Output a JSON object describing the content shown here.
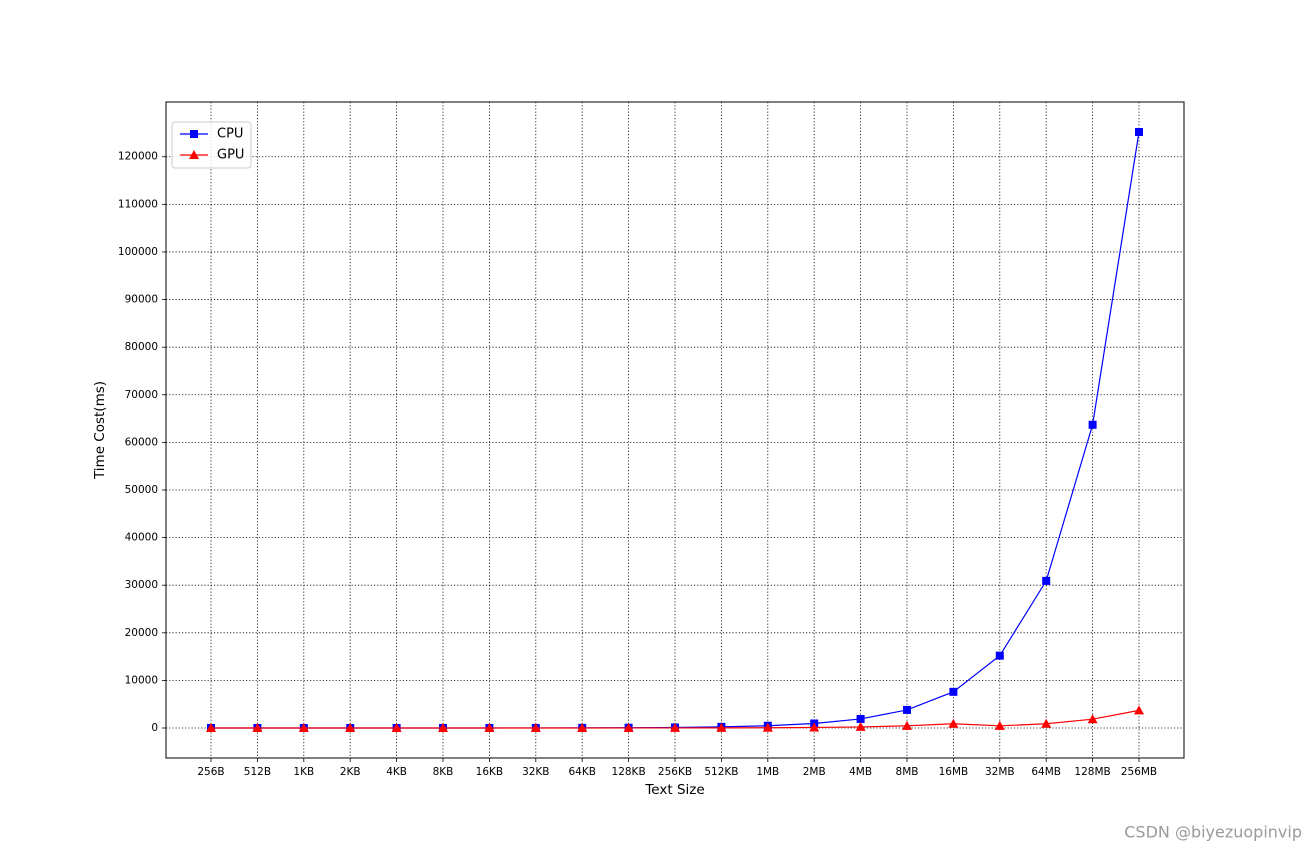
{
  "chart_data": {
    "type": "line",
    "xlabel": "Text Size",
    "ylabel": "Time Cost(ms)",
    "categories": [
      "256B",
      "512B",
      "1KB",
      "2KB",
      "4KB",
      "8KB",
      "16KB",
      "32KB",
      "64KB",
      "128KB",
      "256KB",
      "512KB",
      "1MB",
      "2MB",
      "4MB",
      "8MB",
      "16MB",
      "32MB",
      "64MB",
      "128MB",
      "256MB"
    ],
    "series": [
      {
        "name": "CPU",
        "color": "#0000ff",
        "marker": "square",
        "values": [
          1,
          1,
          1,
          2,
          3,
          5,
          8,
          15,
          30,
          60,
          120,
          240,
          480,
          950,
          1900,
          3800,
          7600,
          15200,
          30900,
          63700,
          125200
        ]
      },
      {
        "name": "GPU",
        "color": "#ff0000",
        "marker": "triangle",
        "values": [
          1,
          1,
          1,
          1,
          1,
          2,
          3,
          4,
          6,
          10,
          15,
          30,
          60,
          115,
          230,
          460,
          900,
          460,
          900,
          1850,
          3700
        ]
      }
    ],
    "ylim": [
      -6300,
      131500
    ],
    "yticks": [
      0,
      10000,
      20000,
      30000,
      40000,
      50000,
      60000,
      70000,
      80000,
      90000,
      100000,
      110000,
      120000
    ],
    "grid": true,
    "legend": "upper left",
    "watermark": "CSDN @biyezuopinvip"
  }
}
